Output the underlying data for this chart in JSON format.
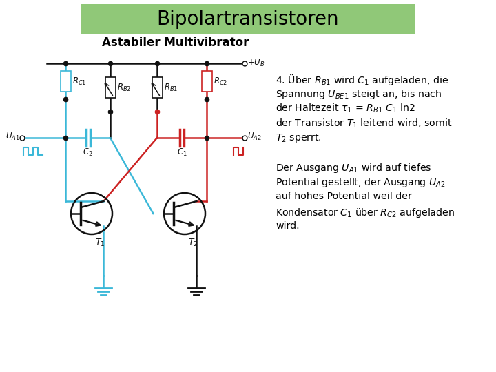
{
  "title": "Bipolartransistoren",
  "subtitle": "Astabiler Multivibrator",
  "title_bg_color": "#90C878",
  "bg_color": "#FFFFFF",
  "title_fontsize": 20,
  "subtitle_fontsize": 12,
  "cyan_color": "#3BB8D8",
  "red_color": "#CC2222",
  "blk_color": "#111111",
  "lw": 1.8,
  "text_lines": [
    "4. Über $R_{B1}$ wird $C_1$ aufgeladen, die",
    "Spannung $U_{BE1}$ steigt an, bis nach",
    "der Haltezeit $\\tau_1$ = $R_{B1}$ $C_1$ ln2",
    "der Transistor $T_1$ leitend wird, somit",
    "$T_2$ sperrt.",
    "",
    "Der Ausgang $U_{A1}$ wird auf tiefes",
    "Potential gestellt, der Ausgang $U_{A2}$",
    "auf hohes Potential weil der",
    "Kondensator $C_1$ über $R_{C2}$ aufgeladen",
    "wird."
  ]
}
